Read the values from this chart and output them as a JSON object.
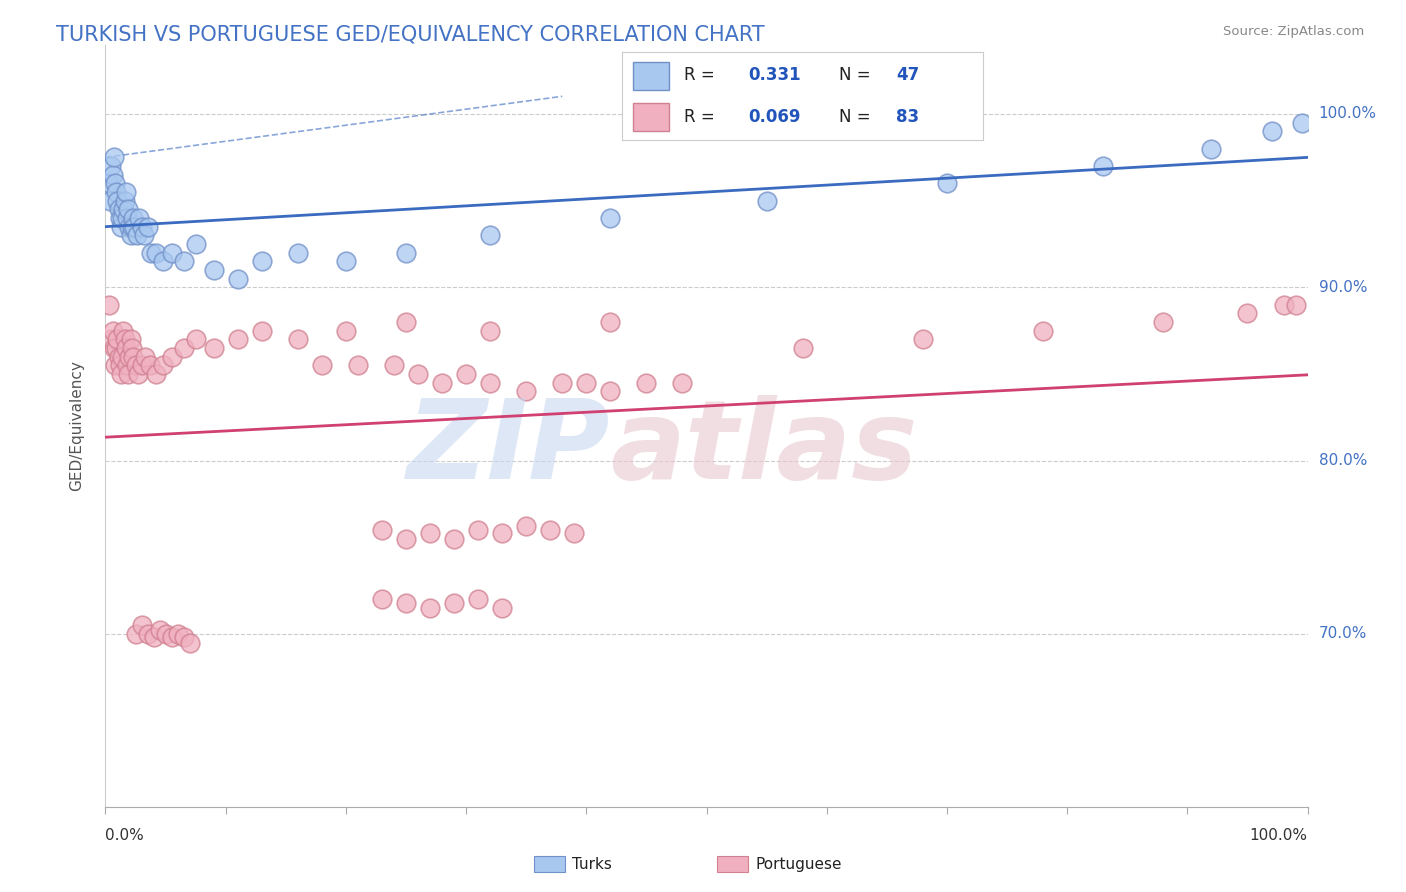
{
  "title": "TURKISH VS PORTUGUESE GED/EQUIVALENCY CORRELATION CHART",
  "source": "Source: ZipAtlas.com",
  "ylabel": "GED/Equivalency",
  "xlim": [
    0.0,
    1.0
  ],
  "ylim": [
    0.6,
    1.04
  ],
  "yticks": [
    0.7,
    0.8,
    0.9,
    1.0
  ],
  "ytick_labels": [
    "70.0%",
    "80.0%",
    "90.0%",
    "100.0%"
  ],
  "turks_R": "0.331",
  "turks_N": "47",
  "portuguese_R": "0.069",
  "portuguese_N": "83",
  "turks_color": "#a8c8f0",
  "turks_edge": "#7090c8",
  "portuguese_color": "#f0b0c0",
  "portuguese_edge": "#d08090",
  "line_blue": "#3a6bc0",
  "line_pink": "#d04070",
  "background_color": "#ffffff",
  "grid_color": "#cccccc",
  "title_color": "#4472c4",
  "turks_x": [
    0.003,
    0.004,
    0.005,
    0.006,
    0.007,
    0.008,
    0.009,
    0.01,
    0.011,
    0.012,
    0.013,
    0.014,
    0.015,
    0.016,
    0.017,
    0.018,
    0.019,
    0.02,
    0.021,
    0.022,
    0.023,
    0.024,
    0.026,
    0.028,
    0.03,
    0.032,
    0.035,
    0.038,
    0.042,
    0.048,
    0.055,
    0.065,
    0.075,
    0.09,
    0.11,
    0.13,
    0.16,
    0.2,
    0.25,
    0.32,
    0.42,
    0.55,
    0.7,
    0.83,
    0.92,
    0.97,
    0.995
  ],
  "turks_y": [
    0.96,
    0.95,
    0.97,
    0.965,
    0.975,
    0.96,
    0.955,
    0.95,
    0.945,
    0.94,
    0.935,
    0.94,
    0.945,
    0.95,
    0.955,
    0.94,
    0.945,
    0.935,
    0.93,
    0.935,
    0.94,
    0.935,
    0.93,
    0.94,
    0.935,
    0.93,
    0.935,
    0.92,
    0.92,
    0.915,
    0.92,
    0.915,
    0.925,
    0.91,
    0.905,
    0.915,
    0.92,
    0.915,
    0.92,
    0.93,
    0.94,
    0.95,
    0.96,
    0.97,
    0.98,
    0.99,
    0.995
  ],
  "portuguese_x": [
    0.003,
    0.005,
    0.006,
    0.007,
    0.008,
    0.009,
    0.01,
    0.011,
    0.012,
    0.013,
    0.014,
    0.015,
    0.016,
    0.017,
    0.018,
    0.019,
    0.02,
    0.021,
    0.022,
    0.023,
    0.025,
    0.027,
    0.03,
    0.033,
    0.037,
    0.042,
    0.048,
    0.055,
    0.065,
    0.075,
    0.09,
    0.11,
    0.13,
    0.16,
    0.2,
    0.25,
    0.32,
    0.42,
    0.18,
    0.21,
    0.24,
    0.26,
    0.28,
    0.3,
    0.32,
    0.35,
    0.38,
    0.4,
    0.42,
    0.45,
    0.48,
    0.58,
    0.68,
    0.78,
    0.88,
    0.95,
    0.98,
    0.99,
    0.23,
    0.25,
    0.27,
    0.29,
    0.31,
    0.33,
    0.35,
    0.37,
    0.39,
    0.23,
    0.25,
    0.27,
    0.29,
    0.31,
    0.33,
    0.025,
    0.03,
    0.035,
    0.04,
    0.045,
    0.05,
    0.055,
    0.06,
    0.065,
    0.07
  ],
  "portuguese_y": [
    0.89,
    0.87,
    0.875,
    0.865,
    0.855,
    0.865,
    0.87,
    0.86,
    0.855,
    0.85,
    0.86,
    0.875,
    0.87,
    0.865,
    0.855,
    0.85,
    0.86,
    0.87,
    0.865,
    0.86,
    0.855,
    0.85,
    0.855,
    0.86,
    0.855,
    0.85,
    0.855,
    0.86,
    0.865,
    0.87,
    0.865,
    0.87,
    0.875,
    0.87,
    0.875,
    0.88,
    0.875,
    0.88,
    0.855,
    0.855,
    0.855,
    0.85,
    0.845,
    0.85,
    0.845,
    0.84,
    0.845,
    0.845,
    0.84,
    0.845,
    0.845,
    0.865,
    0.87,
    0.875,
    0.88,
    0.885,
    0.89,
    0.89,
    0.76,
    0.755,
    0.758,
    0.755,
    0.76,
    0.758,
    0.762,
    0.76,
    0.758,
    0.72,
    0.718,
    0.715,
    0.718,
    0.72,
    0.715,
    0.7,
    0.705,
    0.7,
    0.698,
    0.702,
    0.7,
    0.698,
    0.7,
    0.698,
    0.695
  ],
  "xtick_positions": [
    0.0,
    0.1,
    0.2,
    0.3,
    0.4,
    0.5,
    0.6,
    0.7,
    0.8,
    0.9,
    1.0
  ],
  "watermark_zip_color": "#c8d8f0",
  "watermark_atlas_color": "#e8c8d0"
}
